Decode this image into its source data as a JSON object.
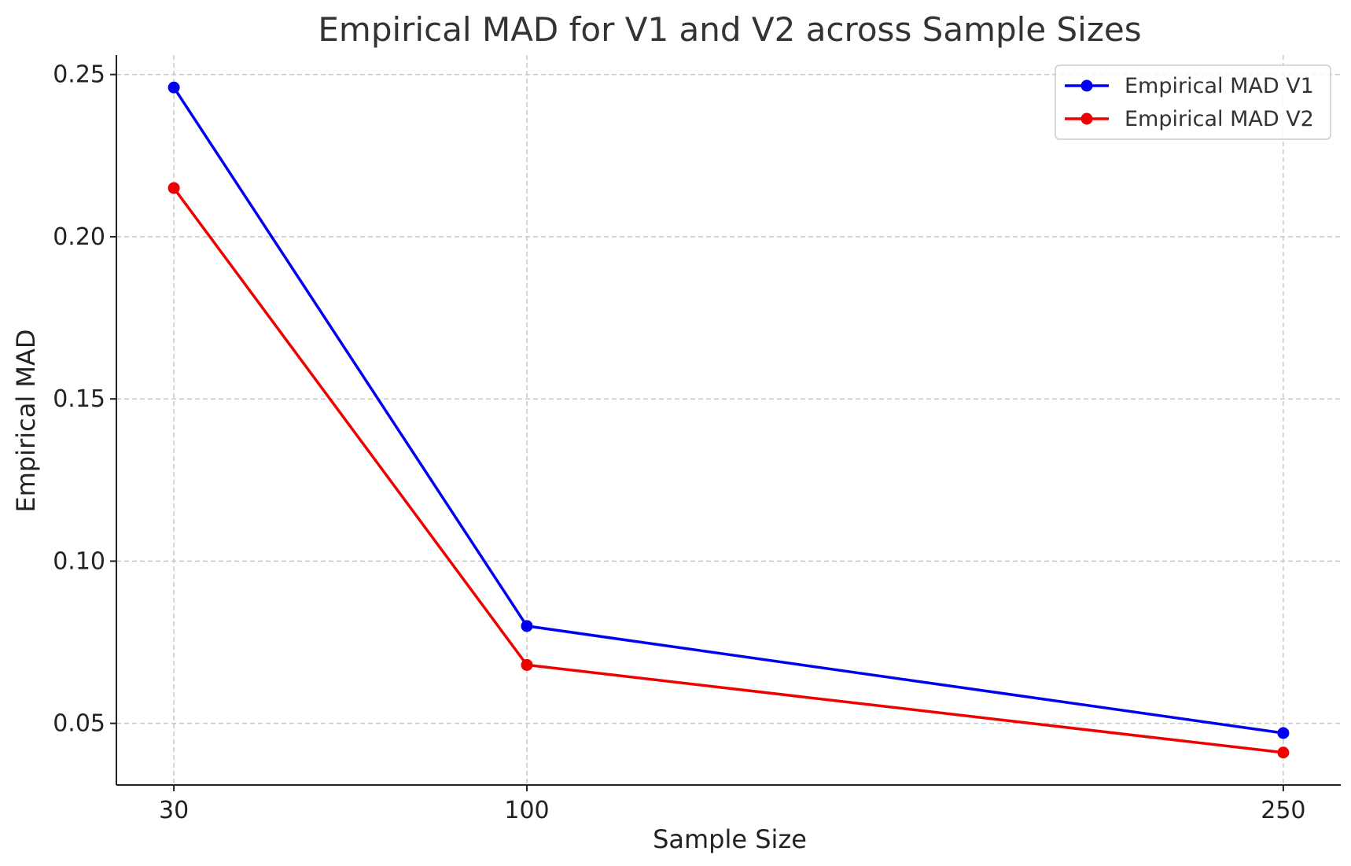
{
  "chart_data": {
    "type": "line",
    "title": "Empirical MAD for V1 and V2 across Sample Sizes",
    "xlabel": "Sample Size",
    "ylabel": "Empirical MAD",
    "x": [
      30,
      100,
      250
    ],
    "xlim": [
      18.6,
      261.4
    ],
    "ylim": [
      0.031,
      0.256
    ],
    "xticks": [
      30,
      100,
      250
    ],
    "xtick_labels": [
      "30",
      "100",
      "250"
    ],
    "yticks": [
      0.05,
      0.1,
      0.15,
      0.2,
      0.25
    ],
    "ytick_labels": [
      "0.05",
      "0.10",
      "0.15",
      "0.20",
      "0.25"
    ],
    "grid": true,
    "legend_position": "top-right",
    "series": [
      {
        "name": "Empirical MAD V1",
        "color": "#0000ee",
        "values": [
          0.246,
          0.08,
          0.047
        ]
      },
      {
        "name": "Empirical MAD V2",
        "color": "#ee0000",
        "values": [
          0.215,
          0.068,
          0.041
        ]
      }
    ]
  }
}
